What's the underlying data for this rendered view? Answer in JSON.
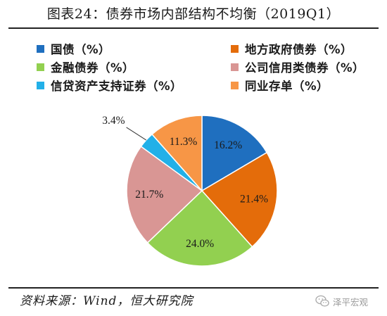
{
  "title": "图表24：债券市场内部结构不均衡（2019Q1）",
  "source": "资料来源：Wind，恒大研究院",
  "watermark": {
    "text": "泽平宏观",
    "icon": "wechat-icon"
  },
  "chart_data": {
    "type": "pie",
    "title": "图表24：债券市场内部结构不均衡（2019Q1）",
    "legend_position": "top",
    "start": "12 o'clock",
    "direction": "clockwise",
    "slices": [
      {
        "name": "国债（%）",
        "value": 16.2,
        "label": "16.2%",
        "color": "#1f6fbf"
      },
      {
        "name": "地方政府债券（%）",
        "value": 21.4,
        "label": "21.4%",
        "color": "#e46c0a"
      },
      {
        "name": "金融债券（%）",
        "value": 24.0,
        "label": "24.0%",
        "color": "#92d050"
      },
      {
        "name": "公司信用类债券（%）",
        "value": 21.7,
        "label": "21.7%",
        "color": "#d99694"
      },
      {
        "name": "信贷资产支持证券（%）",
        "value": 3.4,
        "label": "3.4%",
        "color": "#22b0e8"
      },
      {
        "name": "同业存单（%）",
        "value": 11.3,
        "label": "11.3%",
        "color": "#f79646"
      }
    ]
  }
}
